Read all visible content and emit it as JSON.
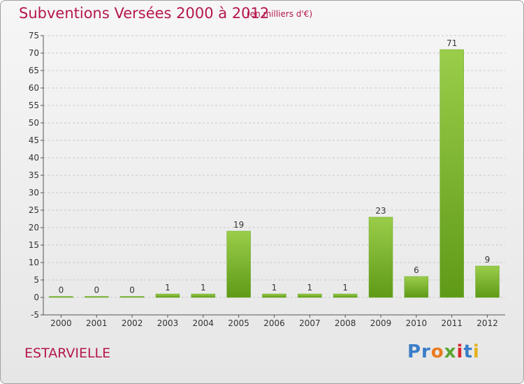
{
  "title": "Subventions Versées 2000 à 2012",
  "unit_note": "(en milliers d'€)",
  "commune": "ESTARVIELLE",
  "logo": {
    "parts": [
      "Pr",
      "o",
      "x",
      "i",
      "t",
      "i"
    ]
  },
  "colors": {
    "title": "#b5174b",
    "bar_light": "#9acd4a",
    "bar_dark": "#5f9a17",
    "grid": "#c8c8c8"
  },
  "chart_data": {
    "type": "bar",
    "title": "Subventions Versées 2000 à 2012",
    "subtitle": "(en milliers d'€)",
    "categories": [
      "2000",
      "2001",
      "2002",
      "2003",
      "2004",
      "2005",
      "2006",
      "2007",
      "2008",
      "2009",
      "2010",
      "2011",
      "2012"
    ],
    "values": [
      0,
      0,
      0,
      1,
      1,
      19,
      1,
      1,
      1,
      23,
      6,
      71,
      9
    ],
    "data_labels": [
      "0",
      "0",
      "0",
      "1",
      "1",
      "19",
      "1",
      "1",
      "1",
      "23",
      "6",
      "71",
      "9"
    ],
    "ylim": [
      -5,
      75
    ],
    "yticks": [
      -5,
      0,
      5,
      10,
      15,
      20,
      25,
      30,
      35,
      40,
      45,
      50,
      55,
      60,
      65,
      70,
      75
    ],
    "ytick_labels": [
      "-5",
      "0",
      "5",
      "10",
      "15",
      "20",
      "25",
      "30",
      "35",
      "40",
      "45",
      "50",
      "55",
      "60",
      "65",
      "70",
      "75"
    ],
    "grid": true,
    "xlabel": "",
    "ylabel": ""
  }
}
